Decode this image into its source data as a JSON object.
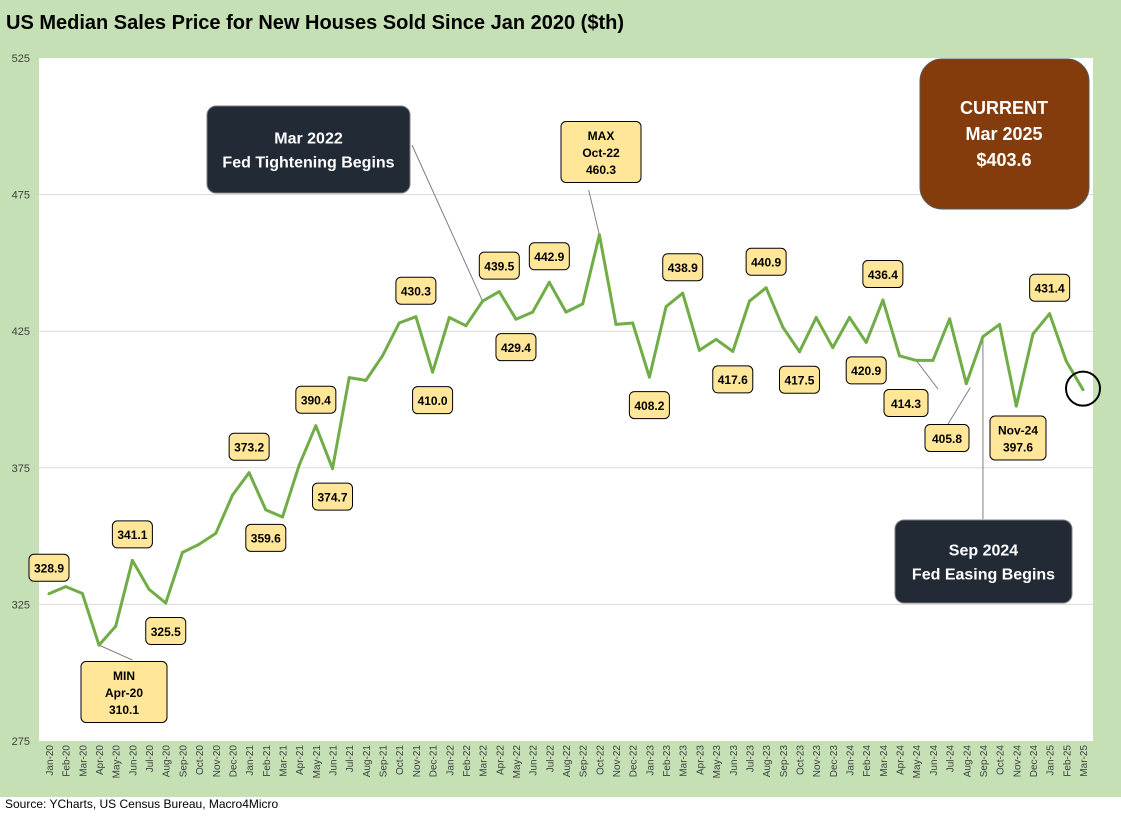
{
  "title": "US Median Sales Price for New Houses Sold Since Jan 2020 ($th)",
  "source": "Source: YCharts, US Census Bureau, Macro4Micro",
  "colors": {
    "frame": "#c5e0b4",
    "line": "#70ad47",
    "callout_fill": "#ffe699",
    "dark_box": "#222a35",
    "current_box": "#843c0c"
  },
  "chart_data": {
    "type": "line",
    "ylim": [
      275,
      525
    ],
    "yticks": [
      "275",
      "325",
      "375",
      "425",
      "475",
      "525"
    ],
    "grid": true,
    "categories": [
      "Jan-20",
      "Feb-20",
      "Mar-20",
      "Apr-20",
      "May-20",
      "Jun-20",
      "Jul-20",
      "Aug-20",
      "Sep-20",
      "Oct-20",
      "Nov-20",
      "Dec-20",
      "Jan-21",
      "Feb-21",
      "Mar-21",
      "Apr-21",
      "May-21",
      "Jun-21",
      "Jul-21",
      "Aug-21",
      "Sep-21",
      "Oct-21",
      "Nov-21",
      "Dec-21",
      "Jan-22",
      "Feb-22",
      "Mar-22",
      "Apr-22",
      "May-22",
      "Jun-22",
      "Jul-22",
      "Aug-22",
      "Sep-22",
      "Oct-22",
      "Nov-22",
      "Dec-22",
      "Jan-23",
      "Feb-23",
      "Mar-23",
      "Apr-23",
      "May-23",
      "Jun-23",
      "Jul-23",
      "Aug-23",
      "Sep-23",
      "Oct-23",
      "Nov-23",
      "Dec-23",
      "Jan-24",
      "Feb-24",
      "Mar-24",
      "Apr-24",
      "May-24",
      "Jun-24",
      "Jul-24",
      "Aug-24",
      "Sep-24",
      "Oct-24",
      "Nov-24",
      "Dec-24",
      "Jan-25",
      "Feb-25",
      "Mar-25"
    ],
    "values": [
      328.9,
      331.5,
      329.0,
      310.1,
      317.0,
      341.1,
      330.5,
      325.5,
      344.0,
      347.0,
      351.0,
      365.0,
      373.2,
      359.6,
      357.0,
      376.0,
      390.4,
      374.7,
      408.0,
      407.0,
      416.0,
      428.0,
      430.3,
      410.0,
      430.0,
      427.0,
      436.0,
      439.5,
      429.4,
      432.0,
      442.9,
      432.0,
      435.0,
      460.3,
      427.5,
      428.0,
      408.2,
      434.0,
      438.9,
      418.0,
      422.0,
      417.6,
      436.0,
      440.9,
      426.5,
      417.5,
      430.0,
      419.0,
      430.0,
      420.9,
      436.4,
      416.0,
      414.3,
      414.3,
      429.5,
      405.8,
      423.0,
      427.5,
      397.6,
      424.0,
      431.4,
      414.0,
      403.6
    ],
    "labels": [
      {
        "i": 0,
        "text": "328.9",
        "pos": "above"
      },
      {
        "i": 5,
        "text": "341.1",
        "pos": "above"
      },
      {
        "i": 7,
        "text": "325.5",
        "pos": "below"
      },
      {
        "i": 12,
        "text": "373.2",
        "pos": "above"
      },
      {
        "i": 13,
        "text": "359.6",
        "pos": "below"
      },
      {
        "i": 16,
        "text": "390.4",
        "pos": "above"
      },
      {
        "i": 17,
        "text": "374.7",
        "pos": "below"
      },
      {
        "i": 22,
        "text": "430.3",
        "pos": "above"
      },
      {
        "i": 23,
        "text": "410.0",
        "pos": "below"
      },
      {
        "i": 27,
        "text": "439.5",
        "pos": "above"
      },
      {
        "i": 28,
        "text": "429.4",
        "pos": "below"
      },
      {
        "i": 30,
        "text": "442.9",
        "pos": "above"
      },
      {
        "i": 36,
        "text": "408.2",
        "pos": "below"
      },
      {
        "i": 38,
        "text": "438.9",
        "pos": "above"
      },
      {
        "i": 41,
        "text": "417.6",
        "pos": "below"
      },
      {
        "i": 43,
        "text": "440.9",
        "pos": "above"
      },
      {
        "i": 45,
        "text": "417.5",
        "pos": "below"
      },
      {
        "i": 49,
        "text": "420.9",
        "pos": "below"
      },
      {
        "i": 50,
        "text": "436.4",
        "pos": "above"
      },
      {
        "i": 60,
        "text": "431.4",
        "pos": "above"
      }
    ],
    "annotations": {
      "min": {
        "lines": [
          "MIN",
          "Apr-20",
          "310.1"
        ]
      },
      "max": {
        "lines": [
          "MAX",
          "Oct-22",
          "460.3"
        ]
      },
      "may24": {
        "text": "414.3"
      },
      "aug24": {
        "text": "405.8"
      },
      "nov24": {
        "lines": [
          "Nov-24",
          "397.6"
        ]
      },
      "tightening": {
        "lines": [
          "Mar 2022",
          "Fed Tightening Begins"
        ]
      },
      "easing": {
        "lines": [
          "Sep 2024",
          "Fed Easing Begins"
        ]
      },
      "current": {
        "lines": [
          "CURRENT",
          "Mar 2025",
          "$403.6"
        ]
      }
    }
  }
}
